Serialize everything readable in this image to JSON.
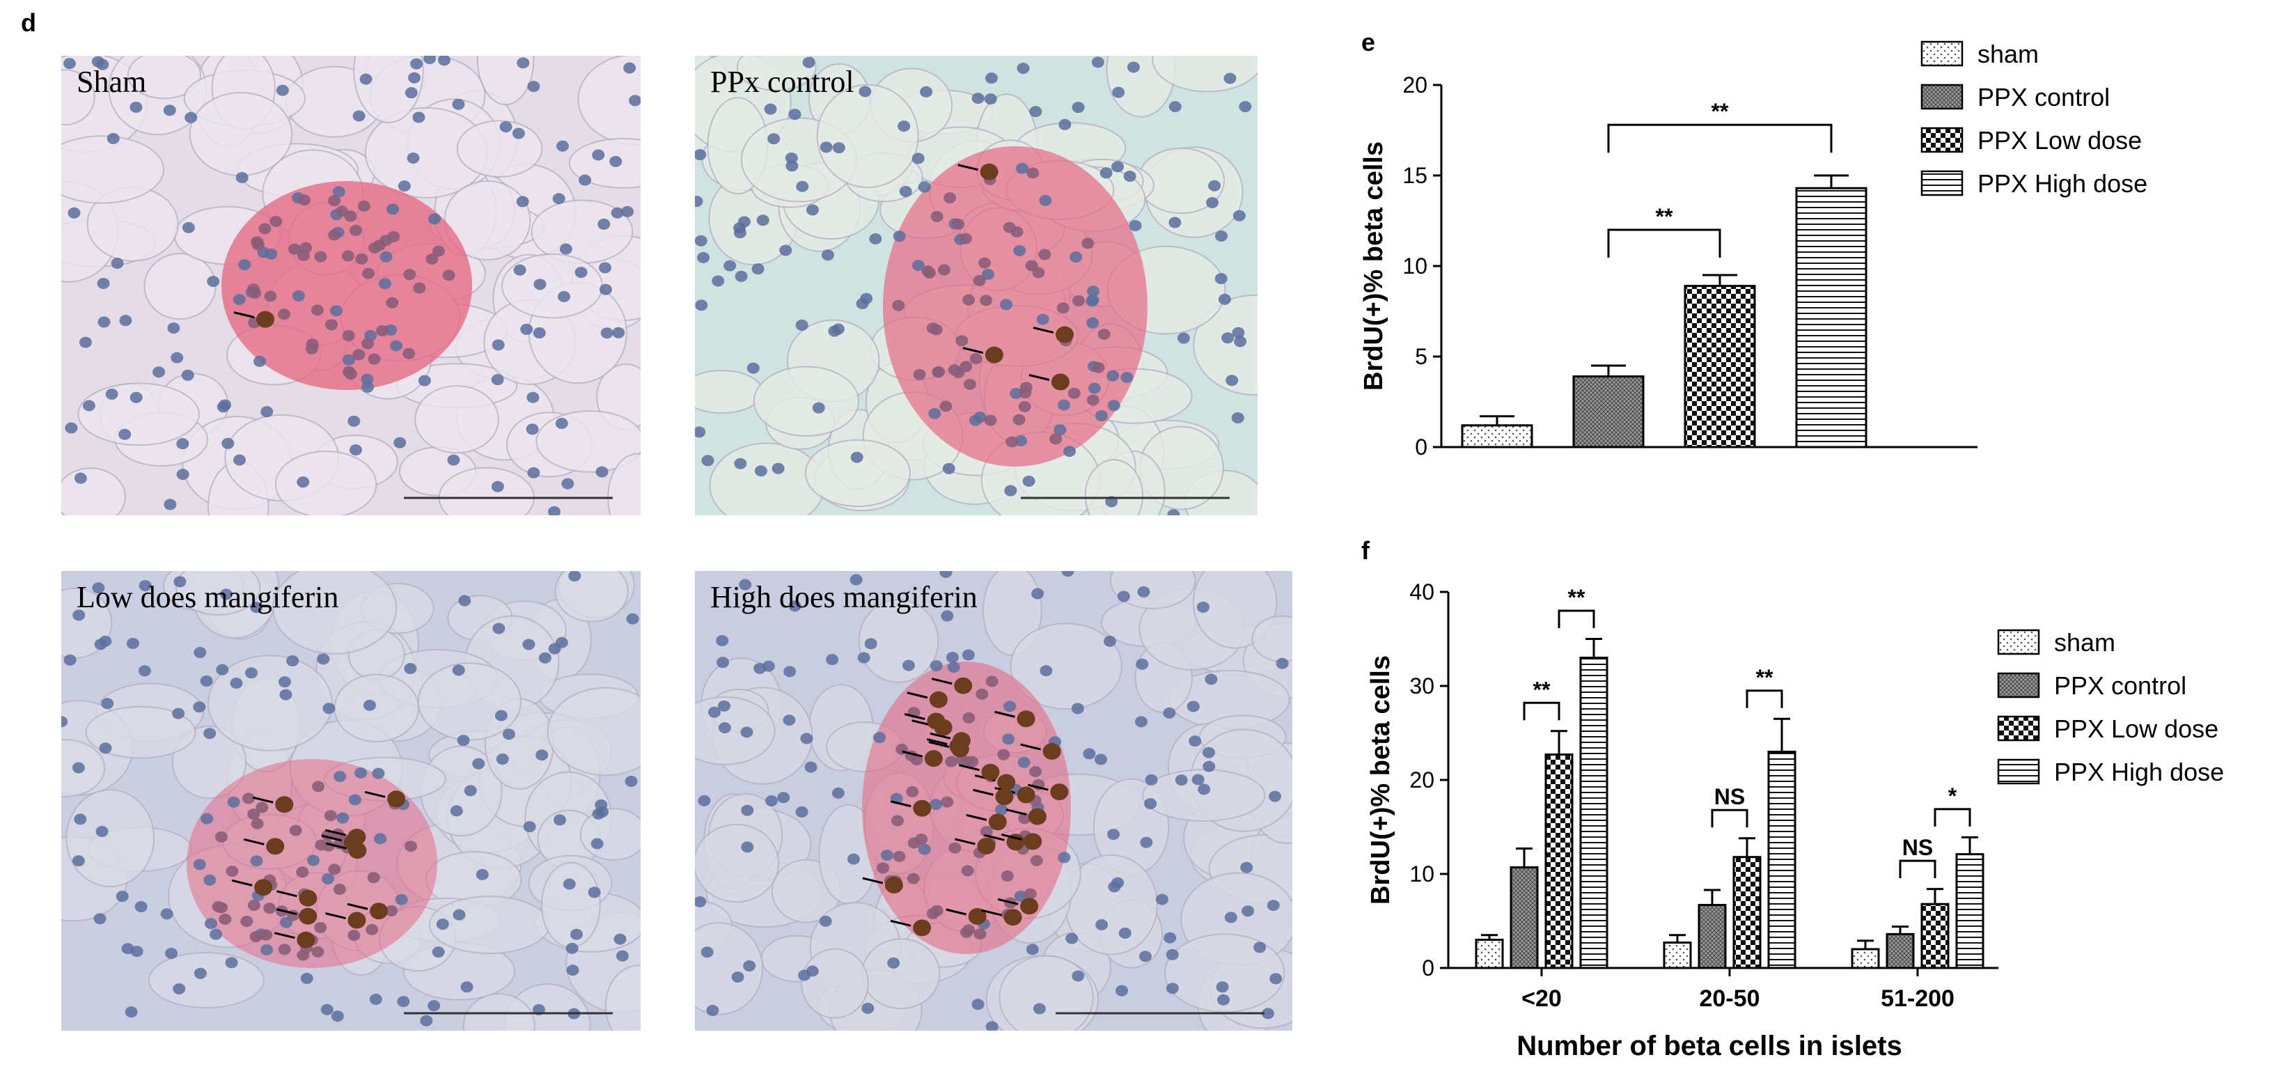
{
  "figure": {
    "panel_labels": {
      "d": "d",
      "e": "e",
      "f": "f"
    }
  },
  "micrographs": [
    {
      "id": "sham",
      "title": "Sham"
    },
    {
      "id": "ppx-control",
      "title": "PPx  control"
    },
    {
      "id": "low-dose",
      "title": "Low does mangiferin"
    },
    {
      "id": "high-dose",
      "title": "High does mangiferin"
    }
  ],
  "colors": {
    "tissue_bg": "#d9d4e0",
    "islet": "#e56b86",
    "nucleus_blue": "#5b6f9e",
    "nucleus_brown": "#6b3d1f",
    "bar_stroke": "#000000"
  },
  "chart_data": [
    {
      "type": "bar",
      "panel": "e",
      "categories": [
        "sham",
        "PPX control",
        "PPX Low dose",
        "PPX High dose"
      ],
      "values": [
        1.2,
        3.9,
        8.9,
        14.3
      ],
      "errors": [
        0.5,
        0.6,
        0.6,
        0.7
      ],
      "ylabel": "BrdU(+)% beta cells",
      "xlabel": "",
      "ylim": [
        0,
        20
      ],
      "yticks": [
        0,
        5,
        10,
        15,
        20
      ],
      "legend": [
        "sham",
        "PPX control",
        "PPX Low dose",
        "PPX High dose"
      ],
      "legend_position": "top-right",
      "annotations": [
        {
          "from": 1,
          "to": 3,
          "label": "**"
        },
        {
          "from": 1,
          "to": 2,
          "label": "**"
        }
      ]
    },
    {
      "type": "bar",
      "panel": "f",
      "categories": [
        "<20",
        "20-50",
        "51-200"
      ],
      "series": [
        {
          "name": "sham",
          "values": [
            3.0,
            2.7,
            2.0
          ],
          "errors": [
            0.5,
            0.8,
            0.9
          ]
        },
        {
          "name": "PPX control",
          "values": [
            10.7,
            6.7,
            3.6
          ],
          "errors": [
            2.0,
            1.6,
            0.8
          ]
        },
        {
          "name": "PPX Low dose",
          "values": [
            22.7,
            11.8,
            6.8
          ],
          "errors": [
            2.5,
            2.0,
            1.6
          ]
        },
        {
          "name": "PPX High dose",
          "values": [
            33.0,
            23.0,
            12.1
          ],
          "errors": [
            2.0,
            3.5,
            1.8
          ]
        }
      ],
      "ylabel": "BrdU(+)% beta cells",
      "xlabel": "Number of beta cells in islets",
      "ylim": [
        0,
        40
      ],
      "yticks": [
        0,
        10,
        20,
        30,
        40
      ],
      "legend": [
        "sham",
        "PPX control",
        "PPX Low dose",
        "PPX High dose"
      ],
      "legend_position": "right",
      "annotations": [
        {
          "group": 0,
          "from": 2,
          "to": 3,
          "label": "**"
        },
        {
          "group": 0,
          "from": 1,
          "to": 2,
          "label": "**"
        },
        {
          "group": 1,
          "from": 2,
          "to": 3,
          "label": "**"
        },
        {
          "group": 1,
          "from": 1,
          "to": 2,
          "label": "NS"
        },
        {
          "group": 2,
          "from": 2,
          "to": 3,
          "label": "*"
        },
        {
          "group": 2,
          "from": 1,
          "to": 2,
          "label": "NS"
        }
      ]
    }
  ]
}
